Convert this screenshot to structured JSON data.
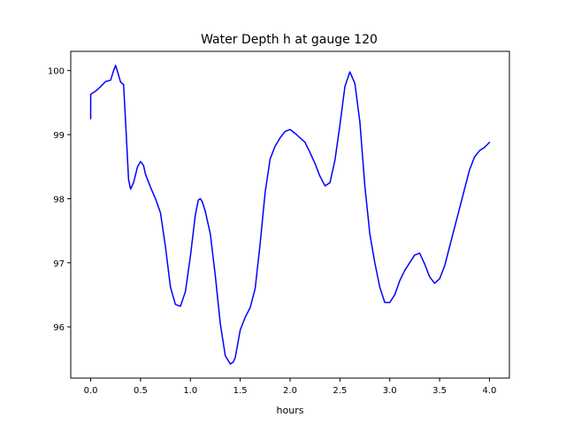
{
  "chart_data": {
    "type": "line",
    "title": "Water Depth h at gauge 120",
    "xlabel": "hours",
    "ylabel": "",
    "xlim": [
      -0.2,
      4.2
    ],
    "ylim": [
      95.2,
      100.3
    ],
    "xticks": [
      0.0,
      0.5,
      1.0,
      1.5,
      2.0,
      2.5,
      3.0,
      3.5,
      4.0
    ],
    "xtick_labels": [
      "0.0",
      "0.5",
      "1.0",
      "1.5",
      "2.0",
      "2.5",
      "3.0",
      "3.5",
      "4.0"
    ],
    "yticks": [
      96,
      97,
      98,
      99,
      100
    ],
    "ytick_labels": [
      "96",
      "97",
      "98",
      "99",
      "100"
    ],
    "grid": false,
    "line_color": "#0000ff",
    "series": [
      {
        "x": [
          0.0,
          0.0,
          0.02,
          0.05,
          0.1,
          0.15,
          0.2,
          0.23,
          0.25,
          0.27,
          0.3,
          0.33,
          0.35,
          0.38,
          0.4,
          0.43,
          0.47,
          0.5,
          0.53,
          0.55,
          0.6,
          0.65,
          0.7,
          0.75,
          0.8,
          0.85,
          0.9,
          0.95,
          1.0,
          1.05,
          1.08,
          1.1,
          1.12,
          1.15,
          1.2,
          1.25,
          1.3,
          1.35,
          1.4,
          1.43,
          1.45,
          1.5,
          1.55,
          1.6,
          1.65,
          1.7,
          1.75,
          1.8,
          1.85,
          1.9,
          1.95,
          2.0,
          2.05,
          2.1,
          2.15,
          2.2,
          2.25,
          2.3,
          2.35,
          2.4,
          2.45,
          2.5,
          2.55,
          2.6,
          2.65,
          2.7,
          2.75,
          2.8,
          2.85,
          2.9,
          2.95,
          3.0,
          3.05,
          3.1,
          3.15,
          3.2,
          3.25,
          3.3,
          3.35,
          3.4,
          3.45,
          3.5,
          3.55,
          3.6,
          3.65,
          3.7,
          3.75,
          3.8,
          3.85,
          3.9,
          3.95,
          4.0
        ],
        "y": [
          99.25,
          99.63,
          99.65,
          99.68,
          99.75,
          99.83,
          99.85,
          100.0,
          100.08,
          99.98,
          99.82,
          99.78,
          99.2,
          98.3,
          98.15,
          98.25,
          98.5,
          98.58,
          98.52,
          98.38,
          98.18,
          98.0,
          97.78,
          97.25,
          96.62,
          96.35,
          96.32,
          96.55,
          97.1,
          97.75,
          97.98,
          98.0,
          97.95,
          97.8,
          97.45,
          96.8,
          96.05,
          95.55,
          95.42,
          95.45,
          95.52,
          95.95,
          96.15,
          96.3,
          96.6,
          97.3,
          98.1,
          98.62,
          98.82,
          98.95,
          99.05,
          99.08,
          99.02,
          98.95,
          98.88,
          98.72,
          98.55,
          98.35,
          98.2,
          98.25,
          98.6,
          99.15,
          99.75,
          99.98,
          99.8,
          99.2,
          98.2,
          97.45,
          97.0,
          96.62,
          96.38,
          96.38,
          96.5,
          96.72,
          96.88,
          97.0,
          97.12,
          97.15,
          96.98,
          96.78,
          96.68,
          96.75,
          96.95,
          97.25,
          97.55,
          97.85,
          98.15,
          98.45,
          98.65,
          98.75,
          98.8,
          98.88
        ]
      }
    ]
  }
}
